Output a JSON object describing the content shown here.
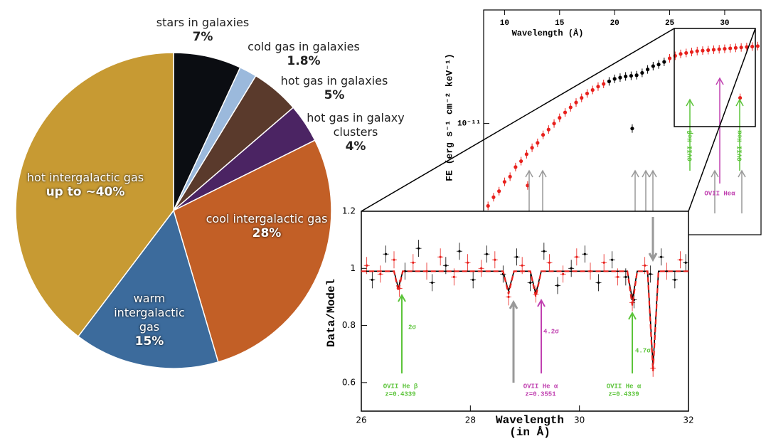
{
  "chart_data": [
    {
      "type": "pie",
      "categories": [
        "stars in galaxies",
        "cold gas in galaxies",
        "hot gas in galaxies",
        "hot gas in galaxy clusters",
        "cool intergalactic gas",
        "warm intergalactic gas",
        "hot intergalactic gas"
      ],
      "values": [
        7,
        1.8,
        5,
        4,
        28,
        15,
        40
      ],
      "value_labels": [
        "7%",
        "1.8%",
        "5%",
        "4%",
        "28%",
        "15%",
        "up to ~40%"
      ],
      "colors": [
        "#0b0d12",
        "#9bb9dc",
        "#5a3a2c",
        "#4b2463",
        "#c25f26",
        "#3c6b9c",
        "#c79a33"
      ]
    },
    {
      "type": "scatter",
      "xlabel": "Wavelength (Å)",
      "ylabel": "FE (erg s⁻¹ cm⁻² keV⁻¹)",
      "xlim": [
        8.1,
        33.3
      ],
      "xticks": [
        10,
        15,
        20,
        25,
        30
      ],
      "ylim": [
        3.2e-12,
        3.2e-11
      ],
      "yticks": [
        {
          "value": 1e-11,
          "label": "10⁻¹¹"
        }
      ],
      "log_y": true,
      "series": [
        {
          "color": "#e8201c",
          "x": [
            8.5,
            9,
            9.5,
            10,
            10.5,
            11,
            11.5,
            12,
            12.1,
            12.5,
            13,
            13.5,
            14,
            14.5,
            15,
            15.5,
            16,
            16.5,
            17,
            17.5,
            18,
            18.5,
            19,
            25,
            25.5,
            26,
            26.5,
            27,
            27.5,
            28,
            28.5,
            29,
            29.5,
            30,
            30.5,
            31,
            31.4,
            31.5,
            32,
            32.5,
            33
          ],
          "values": [
            4.3e-12,
            4.7e-12,
            5e-12,
            5.5e-12,
            5.8e-12,
            6.4e-12,
            6.8e-12,
            7.3e-12,
            5.3e-12,
            7.8e-12,
            8.2e-12,
            8.9e-12,
            9.4e-12,
            1e-11,
            1.06e-11,
            1.12e-11,
            1.18e-11,
            1.24e-11,
            1.3e-11,
            1.36e-11,
            1.41e-11,
            1.46e-11,
            1.5e-11,
            1.95e-11,
            2e-11,
            2.04e-11,
            2.06e-11,
            2.08e-11,
            2.1e-11,
            2.11e-11,
            2.12e-11,
            2.13e-11,
            2.14e-11,
            2.15e-11,
            2.16e-11,
            2.17e-11,
            1.3e-11,
            2.18e-11,
            2.19e-11,
            2.2e-11,
            2.21e-11
          ]
        },
        {
          "color": "#000000",
          "x": [
            19.5,
            20,
            20.5,
            21,
            21.5,
            21.6,
            22,
            22.5,
            23,
            23.5,
            24,
            24.5
          ],
          "values": [
            1.54e-11,
            1.58e-11,
            1.6e-11,
            1.62e-11,
            1.63e-11,
            9.5e-12,
            1.64e-11,
            1.68e-11,
            1.74e-11,
            1.8e-11,
            1.83e-11,
            1.88e-11
          ]
        }
      ],
      "annotations": [
        "OVII Heβ",
        "OVII Heα",
        "OVII Heα"
      ]
    },
    {
      "type": "line",
      "xlabel": [
        "Wavelength",
        "(in Å)"
      ],
      "ylabel": "Data/Model",
      "xlim": [
        26,
        32
      ],
      "xticks": [
        26,
        28,
        30,
        32
      ],
      "ylim": [
        0.5,
        1.2
      ],
      "yticks": [
        0.6,
        0.8,
        1,
        1.2
      ],
      "series": [
        {
          "color": "#e8201c",
          "style": "points",
          "x": [
            26.1,
            26.35,
            26.6,
            26.7,
            26.95,
            27.2,
            27.45,
            27.7,
            27.95,
            28.2,
            28.45,
            28.7,
            28.95,
            29.2,
            29.45,
            29.7,
            29.95,
            30.2,
            30.45,
            30.7,
            30.97,
            31.2,
            31.35,
            31.6,
            31.85
          ],
          "values": [
            1.01,
            0.98,
            1.03,
            0.93,
            1.02,
            0.99,
            1.04,
            0.97,
            1.02,
            1.0,
            1.03,
            0.9,
            1.01,
            0.91,
            1.02,
            0.98,
            1.04,
            0.99,
            1.02,
            0.97,
            0.88,
            1.01,
            0.65,
            0.99,
            1.03
          ]
        },
        {
          "color": "#000000",
          "style": "points",
          "x": [
            26.2,
            26.45,
            26.8,
            27.05,
            27.3,
            27.55,
            27.8,
            28.05,
            28.3,
            28.6,
            28.85,
            29.1,
            29.35,
            29.6,
            29.85,
            30.1,
            30.35,
            30.6,
            30.85,
            31.0,
            31.3,
            31.5,
            31.75,
            31.95
          ],
          "values": [
            0.96,
            1.05,
            0.99,
            1.07,
            0.95,
            1.01,
            1.06,
            0.96,
            1.05,
            0.98,
            1.04,
            0.95,
            1.06,
            0.94,
            1.0,
            1.05,
            0.95,
            1.03,
            0.97,
            0.89,
            0.98,
            1.04,
            0.96,
            1.02
          ]
        },
        {
          "color": "#000000",
          "style": "solid",
          "x": [
            26,
            26.6,
            26.68,
            26.76,
            28.6,
            28.7,
            28.8,
            29.1,
            29.2,
            29.3,
            30.88,
            30.97,
            31.06,
            31.25,
            31.35,
            31.45,
            32
          ],
          "values": [
            0.99,
            0.99,
            0.93,
            0.99,
            0.99,
            0.92,
            0.99,
            0.99,
            0.91,
            0.99,
            0.99,
            0.89,
            0.99,
            0.99,
            0.66,
            0.99,
            0.99
          ]
        },
        {
          "color": "#e8201c",
          "style": "dashed",
          "x": [
            26,
            26.6,
            26.68,
            26.76,
            28.6,
            28.7,
            28.8,
            29.1,
            29.2,
            29.3,
            30.88,
            30.97,
            31.06,
            31.25,
            31.35,
            31.45,
            32
          ],
          "values": [
            0.99,
            0.99,
            0.92,
            0.99,
            0.99,
            0.91,
            0.99,
            0.99,
            0.9,
            0.99,
            0.99,
            0.87,
            0.99,
            0.99,
            0.64,
            0.99,
            0.99
          ]
        }
      ],
      "annotations": [
        "2σ",
        "4.2σ",
        "4.7σ",
        "OVII He β",
        "z=0.4339",
        "OVII He α",
        "z=0.3551",
        "OVII He α",
        "z=0.4339"
      ]
    }
  ]
}
